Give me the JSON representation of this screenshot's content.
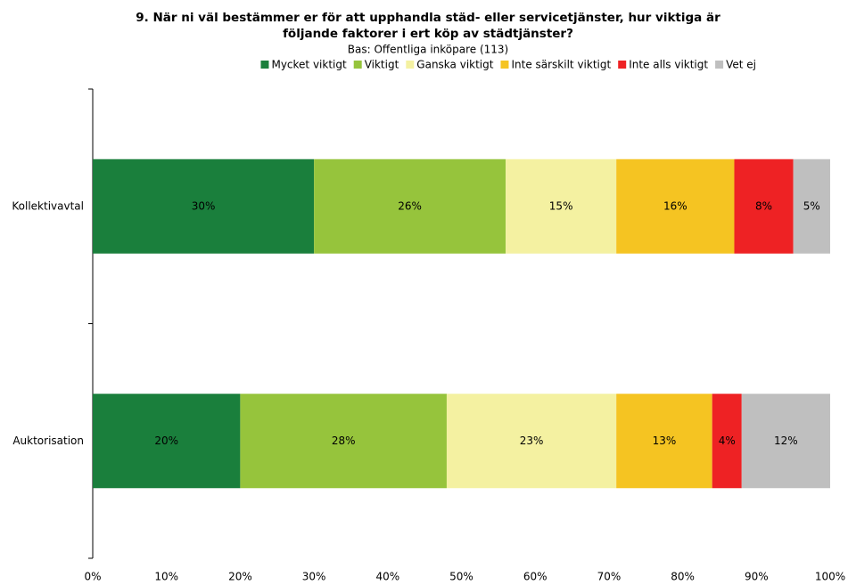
{
  "chart_data": {
    "type": "stacked_bar_horizontal",
    "title": [
      "9. När ni väl bestämmer er för att upphandla städ- eller servicetjänster, hur viktiga är",
      "följande faktorer i ert köp av städtjänster?"
    ],
    "subtitle": "Bas: Offentliga inköpare (113)",
    "categories": [
      "Kollektivavtal",
      "Auktorisation"
    ],
    "series": [
      {
        "name": "Mycket viktigt",
        "color": "#1a7f3c",
        "values": [
          30,
          20
        ],
        "value_labels": [
          "30%",
          "20%"
        ]
      },
      {
        "name": "Viktigt",
        "color": "#96c43c",
        "values": [
          26,
          28
        ],
        "value_labels": [
          "26%",
          "28%"
        ]
      },
      {
        "name": "Ganska viktigt",
        "color": "#f4f1a1",
        "values": [
          15,
          23
        ],
        "value_labels": [
          "15%",
          "23%"
        ]
      },
      {
        "name": "Inte särskilt viktigt",
        "color": "#f5c422",
        "values": [
          16,
          13
        ],
        "value_labels": [
          "16%",
          "13%"
        ]
      },
      {
        "name": "Inte alls viktigt",
        "color": "#ee2224",
        "values": [
          8,
          4
        ],
        "value_labels": [
          "8%",
          "4%"
        ]
      },
      {
        "name": "Vet ej",
        "color": "#bfbfbf",
        "values": [
          5,
          12
        ],
        "value_labels": [
          "5%",
          "12%"
        ]
      }
    ],
    "xlim": [
      0,
      100
    ],
    "xticks": [
      {
        "value": 0,
        "label": "0%"
      },
      {
        "value": 10,
        "label": "10%"
      },
      {
        "value": 20,
        "label": "20%"
      },
      {
        "value": 30,
        "label": "30%"
      },
      {
        "value": 40,
        "label": "40%"
      },
      {
        "value": 50,
        "label": "50%"
      },
      {
        "value": 60,
        "label": "60%"
      },
      {
        "value": 70,
        "label": "70%"
      },
      {
        "value": 80,
        "label": "80%"
      },
      {
        "value": 90,
        "label": "90%"
      },
      {
        "value": 100,
        "label": "100%"
      }
    ],
    "legend": "top"
  }
}
